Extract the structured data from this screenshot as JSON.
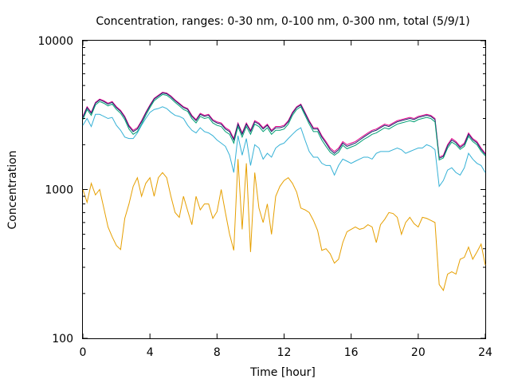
{
  "chart_data": {
    "type": "line",
    "title": "Concentration, ranges: 0-30 nm, 0-100 nm, 0-300 nm, total (5/9/1)",
    "xlabel": "Time [hour]",
    "ylabel": "Concentration",
    "xlim": [
      0,
      24
    ],
    "ylim": [
      100,
      10000
    ],
    "yscale": "log",
    "grid": false,
    "x_ticks": [
      0,
      4,
      8,
      12,
      16,
      20,
      24
    ],
    "x_tick_labels": [
      "0",
      "4",
      "8",
      "12",
      "16",
      "20",
      "24"
    ],
    "y_ticks": [
      100,
      1000,
      10000
    ],
    "y_tick_labels": [
      "100",
      "1000",
      "10000"
    ],
    "x": [
      0.0,
      0.25,
      0.5,
      0.75,
      1.0,
      1.25,
      1.5,
      1.75,
      2.0,
      2.25,
      2.5,
      2.75,
      3.0,
      3.25,
      3.5,
      3.75,
      4.0,
      4.25,
      4.5,
      4.75,
      5.0,
      5.25,
      5.5,
      5.75,
      6.0,
      6.25,
      6.5,
      6.75,
      7.0,
      7.25,
      7.5,
      7.75,
      8.0,
      8.25,
      8.5,
      8.75,
      9.0,
      9.25,
      9.5,
      9.75,
      10.0,
      10.25,
      10.5,
      10.75,
      11.0,
      11.25,
      11.5,
      11.75,
      12.0,
      12.25,
      12.5,
      12.75,
      13.0,
      13.25,
      13.5,
      13.75,
      14.0,
      14.25,
      14.5,
      14.75,
      15.0,
      15.25,
      15.5,
      15.75,
      16.0,
      16.25,
      16.5,
      16.75,
      17.0,
      17.25,
      17.5,
      17.75,
      18.0,
      18.25,
      18.5,
      18.75,
      19.0,
      19.25,
      19.5,
      19.75,
      20.0,
      20.25,
      20.5,
      20.75,
      21.0,
      21.25,
      21.5,
      21.75,
      22.0,
      22.25,
      22.5,
      22.75,
      23.0,
      23.25,
      23.5,
      23.75,
      24.0
    ],
    "series": [
      {
        "color": "#e6008c",
        "values": [
          3100,
          3600,
          3300,
          3850,
          4050,
          3950,
          3800,
          3900,
          3600,
          3400,
          3100,
          2700,
          2500,
          2600,
          2900,
          3300,
          3700,
          4100,
          4300,
          4500,
          4450,
          4250,
          4000,
          3800,
          3600,
          3500,
          3150,
          2950,
          3250,
          3150,
          3200,
          2950,
          2850,
          2800,
          2600,
          2500,
          2200,
          2800,
          2400,
          2800,
          2500,
          2900,
          2800,
          2600,
          2750,
          2500,
          2650,
          2650,
          2700,
          2900,
          3300,
          3600,
          3750,
          3300,
          2900,
          2600,
          2600,
          2300,
          2100,
          1900,
          1800,
          1900,
          2100,
          2000,
          2050,
          2100,
          2200,
          2300,
          2400,
          2500,
          2550,
          2650,
          2750,
          2700,
          2800,
          2900,
          2950,
          3000,
          3050,
          3000,
          3100,
          3150,
          3200,
          3150,
          3000,
          1650,
          1700,
          2000,
          2200,
          2100,
          1950,
          2050,
          2400,
          2200,
          2100,
          1900,
          1750
        ]
      },
      {
        "color": "#1a2a6c",
        "values": [
          3050,
          3550,
          3250,
          3800,
          4000,
          3900,
          3750,
          3850,
          3550,
          3350,
          3050,
          2650,
          2450,
          2550,
          2850,
          3250,
          3650,
          4050,
          4250,
          4450,
          4400,
          4200,
          3950,
          3750,
          3550,
          3450,
          3100,
          2900,
          3200,
          3100,
          3150,
          2900,
          2800,
          2750,
          2550,
          2450,
          2150,
          2750,
          2350,
          2750,
          2450,
          2850,
          2750,
          2550,
          2700,
          2450,
          2600,
          2600,
          2650,
          2850,
          3250,
          3550,
          3700,
          3250,
          2850,
          2550,
          2550,
          2250,
          2050,
          1850,
          1750,
          1850,
          2050,
          1950,
          2000,
          2050,
          2150,
          2250,
          2350,
          2450,
          2500,
          2600,
          2700,
          2650,
          2750,
          2850,
          2900,
          2950,
          3000,
          2950,
          3050,
          3100,
          3150,
          3100,
          2950,
          1620,
          1670,
          1960,
          2150,
          2060,
          1910,
          2010,
          2350,
          2160,
          2060,
          1860,
          1720
        ]
      },
      {
        "color": "#009e73",
        "values": [
          2950,
          3450,
          3150,
          3700,
          3900,
          3800,
          3650,
          3750,
          3450,
          3250,
          2950,
          2550,
          2350,
          2450,
          2750,
          3150,
          3550,
          3950,
          4150,
          4350,
          4300,
          4100,
          3850,
          3650,
          3450,
          3350,
          3000,
          2800,
          3100,
          3000,
          3050,
          2800,
          2700,
          2650,
          2450,
          2350,
          2050,
          2650,
          2250,
          2650,
          2350,
          2750,
          2650,
          2450,
          2600,
          2350,
          2500,
          2500,
          2550,
          2750,
          3150,
          3450,
          3600,
          3150,
          2750,
          2450,
          2450,
          2150,
          1950,
          1780,
          1700,
          1780,
          1980,
          1880,
          1930,
          1980,
          2070,
          2170,
          2250,
          2350,
          2400,
          2500,
          2600,
          2550,
          2650,
          2750,
          2800,
          2850,
          2900,
          2850,
          2950,
          3000,
          3050,
          3000,
          2850,
          1580,
          1630,
          1900,
          2080,
          2000,
          1860,
          1950,
          2280,
          2100,
          2000,
          1810,
          1680
        ]
      },
      {
        "color": "#35b1d6",
        "values": [
          2700,
          3000,
          2650,
          3200,
          3200,
          3100,
          3000,
          3050,
          2700,
          2500,
          2250,
          2200,
          2200,
          2400,
          2700,
          3000,
          3300,
          3450,
          3500,
          3600,
          3500,
          3300,
          3150,
          3100,
          3000,
          2700,
          2500,
          2400,
          2600,
          2450,
          2400,
          2300,
          2150,
          2050,
          1950,
          1700,
          1300,
          2300,
          1700,
          2200,
          1450,
          2000,
          1900,
          1600,
          1750,
          1650,
          1900,
          2000,
          2050,
          2200,
          2350,
          2500,
          2600,
          2150,
          1800,
          1650,
          1650,
          1500,
          1450,
          1450,
          1250,
          1450,
          1600,
          1550,
          1500,
          1550,
          1600,
          1650,
          1650,
          1600,
          1750,
          1800,
          1800,
          1800,
          1850,
          1900,
          1850,
          1750,
          1800,
          1850,
          1900,
          1900,
          2000,
          1950,
          1850,
          1050,
          1150,
          1350,
          1400,
          1300,
          1250,
          1400,
          1750,
          1600,
          1500,
          1450,
          1300
        ]
      },
      {
        "color": "#e69f00",
        "values": [
          1000,
          820,
          1100,
          920,
          1000,
          750,
          560,
          480,
          420,
          395,
          640,
          800,
          1050,
          1200,
          900,
          1100,
          1200,
          900,
          1200,
          1300,
          1200,
          900,
          700,
          650,
          900,
          720,
          580,
          900,
          730,
          800,
          800,
          640,
          710,
          1000,
          700,
          500,
          390,
          1600,
          540,
          1500,
          380,
          1300,
          750,
          600,
          800,
          500,
          900,
          1050,
          1150,
          1200,
          1100,
          960,
          750,
          730,
          700,
          620,
          530,
          390,
          400,
          370,
          320,
          340,
          440,
          520,
          540,
          560,
          540,
          550,
          580,
          560,
          440,
          580,
          630,
          700,
          690,
          650,
          500,
          600,
          650,
          590,
          560,
          650,
          640,
          620,
          600,
          230,
          210,
          270,
          280,
          270,
          340,
          350,
          410,
          340,
          380,
          430,
          310
        ]
      }
    ]
  }
}
